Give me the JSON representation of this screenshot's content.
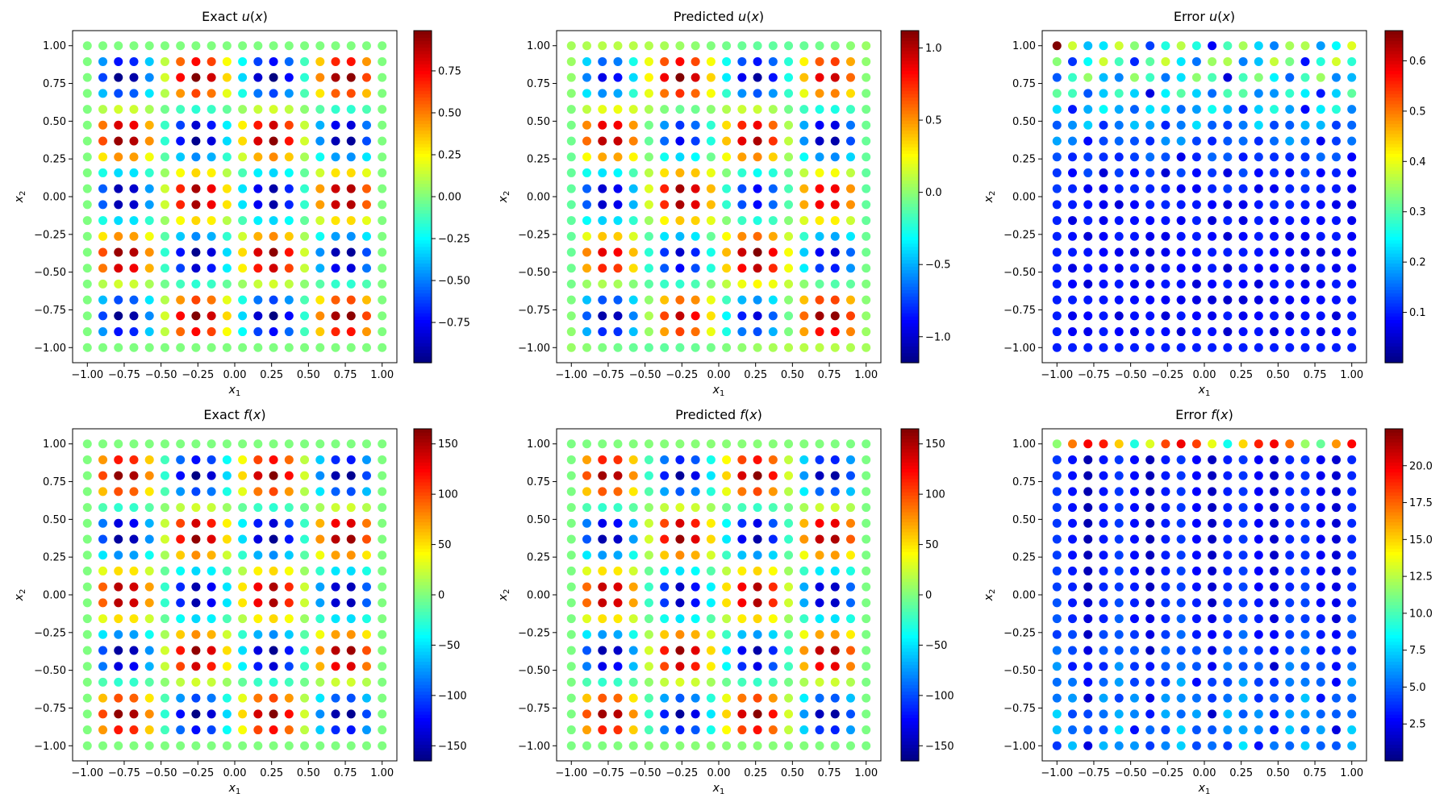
{
  "chart_data": [
    {
      "type": "scatter",
      "title": "Exact u(x)",
      "title_parts": [
        "Exact ",
        "u",
        "(",
        "x",
        ")"
      ],
      "xlabel": "x_1",
      "ylabel": "x_2",
      "xlim": [
        -1.1,
        1.1
      ],
      "ylim": [
        -1.1,
        1.1
      ],
      "xticks": [
        "−1.00",
        "−0.75",
        "−0.50",
        "−0.25",
        "0.00",
        "0.25",
        "0.50",
        "0.75",
        "1.00"
      ],
      "yticks": [
        "−1.00",
        "−0.75",
        "−0.50",
        "−0.25",
        "0.00",
        "0.25",
        "0.50",
        "0.75",
        "1.00"
      ],
      "grid": "20x20 points on [-1,1]x[-1,1]",
      "field": "exact_u",
      "colormap": "jet",
      "colorbar": {
        "min": -0.99,
        "max": 0.99,
        "ticks": [
          "−0.75",
          "−0.50",
          "−0.25",
          "0.00",
          "0.25",
          "0.50",
          "0.75"
        ],
        "tick_values": [
          -0.75,
          -0.5,
          -0.25,
          0,
          0.25,
          0.5,
          0.75
        ]
      }
    },
    {
      "type": "scatter",
      "title": "Predicted u(x)",
      "title_parts": [
        "Predicted ",
        "u",
        "(",
        "x",
        ")"
      ],
      "xlabel": "x_1",
      "ylabel": "x_2",
      "xlim": [
        -1.1,
        1.1
      ],
      "ylim": [
        -1.1,
        1.1
      ],
      "xticks": [
        "−1.00",
        "−0.75",
        "−0.50",
        "−0.25",
        "0.00",
        "0.25",
        "0.50",
        "0.75",
        "1.00"
      ],
      "yticks": [
        "−1.00",
        "−0.75",
        "−0.50",
        "−0.25",
        "0.00",
        "0.25",
        "0.50",
        "0.75",
        "1.00"
      ],
      "field": "pred_u",
      "colormap": "jet",
      "colorbar": {
        "min": -1.18,
        "max": 1.12,
        "ticks": [
          "−1.0",
          "−0.5",
          "0.0",
          "0.5",
          "1.0"
        ],
        "tick_values": [
          -1.0,
          -0.5,
          0,
          0.5,
          1.0
        ]
      }
    },
    {
      "type": "scatter",
      "title": "Error u(x)",
      "title_parts": [
        "Error ",
        "u",
        "(",
        "x",
        ")"
      ],
      "xlabel": "x_1",
      "ylabel": "x_2",
      "xlim": [
        -1.1,
        1.1
      ],
      "ylim": [
        -1.1,
        1.1
      ],
      "xticks": [
        "−1.00",
        "−0.75",
        "−0.50",
        "−0.25",
        "0.00",
        "0.25",
        "0.50",
        "0.75",
        "1.00"
      ],
      "yticks": [
        "−1.00",
        "−0.75",
        "−0.50",
        "−0.25",
        "0.00",
        "0.25",
        "0.50",
        "0.75",
        "1.00"
      ],
      "field": "err_u",
      "colormap": "jet",
      "colorbar": {
        "min": 0.0,
        "max": 0.66,
        "ticks": [
          "0.1",
          "0.2",
          "0.3",
          "0.4",
          "0.5",
          "0.6"
        ],
        "tick_values": [
          0.1,
          0.2,
          0.3,
          0.4,
          0.5,
          0.6
        ]
      }
    },
    {
      "type": "scatter",
      "title": "Exact f(x)",
      "title_parts": [
        "Exact ",
        "f",
        "(",
        "x",
        ")"
      ],
      "xlabel": "x_1",
      "ylabel": "x_2",
      "xlim": [
        -1.1,
        1.1
      ],
      "ylim": [
        -1.1,
        1.1
      ],
      "xticks": [
        "−1.00",
        "−0.75",
        "−0.50",
        "−0.25",
        "0.00",
        "0.25",
        "0.50",
        "0.75",
        "1.00"
      ],
      "yticks": [
        "−1.00",
        "−0.75",
        "−0.50",
        "−0.25",
        "0.00",
        "0.25",
        "0.50",
        "0.75",
        "1.00"
      ],
      "field": "exact_f",
      "colormap": "jet",
      "colorbar": {
        "min": -165,
        "max": 165,
        "ticks": [
          "−150",
          "−100",
          "−50",
          "0",
          "50",
          "100",
          "150"
        ],
        "tick_values": [
          -150,
          -100,
          -50,
          0,
          50,
          100,
          150
        ]
      }
    },
    {
      "type": "scatter",
      "title": "Predicted f(x)",
      "title_parts": [
        "Predicted ",
        "f",
        "(",
        "x",
        ")"
      ],
      "xlabel": "x_1",
      "ylabel": "x_2",
      "xlim": [
        -1.1,
        1.1
      ],
      "ylim": [
        -1.1,
        1.1
      ],
      "xticks": [
        "−1.00",
        "−0.75",
        "−0.50",
        "−0.25",
        "0.00",
        "0.25",
        "0.50",
        "0.75",
        "1.00"
      ],
      "yticks": [
        "−1.00",
        "−0.75",
        "−0.50",
        "−0.25",
        "0.00",
        "0.25",
        "0.50",
        "0.75",
        "1.00"
      ],
      "field": "pred_f",
      "colormap": "jet",
      "colorbar": {
        "min": -165,
        "max": 165,
        "ticks": [
          "−150",
          "−100",
          "−50",
          "0",
          "50",
          "100",
          "150"
        ],
        "tick_values": [
          -150,
          -100,
          -50,
          0,
          50,
          100,
          150
        ]
      }
    },
    {
      "type": "scatter",
      "title": "Error f(x)",
      "title_parts": [
        "Error ",
        "f",
        "(",
        "x",
        ")"
      ],
      "xlabel": "x_1",
      "ylabel": "x_2",
      "xlim": [
        -1.1,
        1.1
      ],
      "ylim": [
        -1.1,
        1.1
      ],
      "xticks": [
        "−1.00",
        "−0.75",
        "−0.50",
        "−0.25",
        "0.00",
        "0.25",
        "0.50",
        "0.75",
        "1.00"
      ],
      "yticks": [
        "−1.00",
        "−0.75",
        "−0.50",
        "−0.25",
        "0.00",
        "0.25",
        "0.50",
        "0.75",
        "1.00"
      ],
      "field": "err_f",
      "colormap": "jet",
      "colorbar": {
        "min": 0.0,
        "max": 22.5,
        "ticks": [
          "2.5",
          "5.0",
          "7.5",
          "10.0",
          "12.5",
          "15.0",
          "17.5",
          "20.0"
        ],
        "tick_values": [
          2.5,
          5.0,
          7.5,
          10.0,
          12.5,
          15.0,
          17.5,
          20.0
        ]
      }
    }
  ]
}
